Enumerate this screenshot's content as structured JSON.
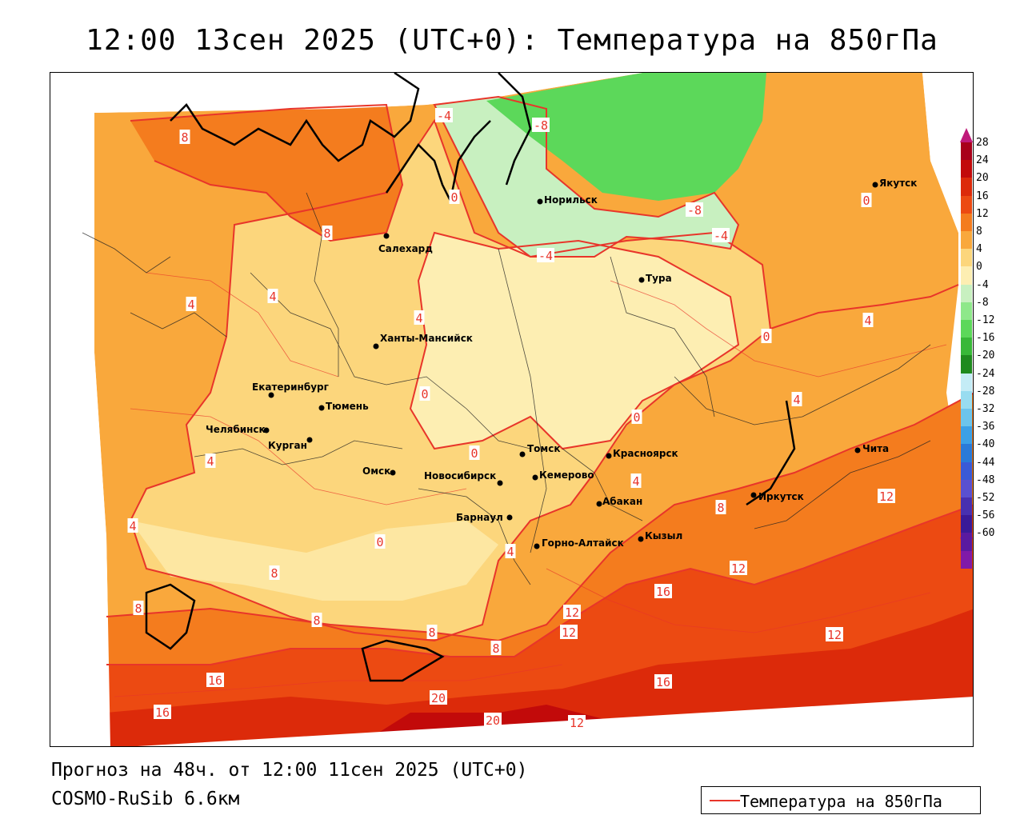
{
  "title": "12:00 13сен 2025 (UTC+0): Температура на 850гПа",
  "forecast_line": "Прогноз на 48ч. от 12:00 11сен 2025 (UTC+0)",
  "model_line": "COSMO-RuSib 6.6км",
  "legend": {
    "label": "Температура на 850гПа",
    "line_color": "#e8352a"
  },
  "colorbar": {
    "ticks": [
      "28",
      "24",
      "20",
      "16",
      "12",
      "8",
      "4",
      "0",
      "-4",
      "-8",
      "-12",
      "-16",
      "-20",
      "-24",
      "-28",
      "-32",
      "-36",
      "-40",
      "-44",
      "-48",
      "-52",
      "-56",
      "-60"
    ],
    "colors": [
      "#a8001a",
      "#c20a0a",
      "#dc2a0a",
      "#ec4a12",
      "#f47c1e",
      "#f9a83c",
      "#fcd67c",
      "#fdeeb2",
      "#c8f0c0",
      "#8ee88a",
      "#5cd85a",
      "#38b838",
      "#1e8a1e",
      "#c4ecf6",
      "#98dcf0",
      "#6cc4ec",
      "#3ca0e6",
      "#2a7ad8",
      "#3a5ad6",
      "#5a50d0",
      "#4830b0",
      "#3a1a98",
      "#5a1aa0",
      "#801aa8"
    ]
  },
  "cities": [
    {
      "name": "Норильск"
    },
    {
      "name": "Якутск"
    },
    {
      "name": "Салехард"
    },
    {
      "name": "Тура"
    },
    {
      "name": "Ханты-Мансийск"
    },
    {
      "name": "Екатеринбург"
    },
    {
      "name": "Тюмень"
    },
    {
      "name": "Челябинск"
    },
    {
      "name": "Курган"
    },
    {
      "name": "Омск"
    },
    {
      "name": "Томск"
    },
    {
      "name": "Красноярск"
    },
    {
      "name": "Новосибирск"
    },
    {
      "name": "Кемерово"
    },
    {
      "name": "Барнаул"
    },
    {
      "name": "Абакан"
    },
    {
      "name": "Иркутск"
    },
    {
      "name": "Чита"
    },
    {
      "name": "Кызыл"
    },
    {
      "name": "Горно-Алтайск"
    }
  ],
  "isotherm_labels": [
    "-4",
    "-8",
    "-8",
    "-4",
    "-4",
    "8",
    "8",
    "0",
    "0",
    "4",
    "4",
    "4",
    "0",
    "0",
    "0",
    "0",
    "0",
    "4",
    "4",
    "4",
    "4",
    "4",
    "4",
    "8",
    "8",
    "8",
    "8",
    "8",
    "8",
    "12",
    "12",
    "12",
    "12",
    "12",
    "16",
    "16",
    "16",
    "16",
    "20",
    "20",
    "12"
  ]
}
